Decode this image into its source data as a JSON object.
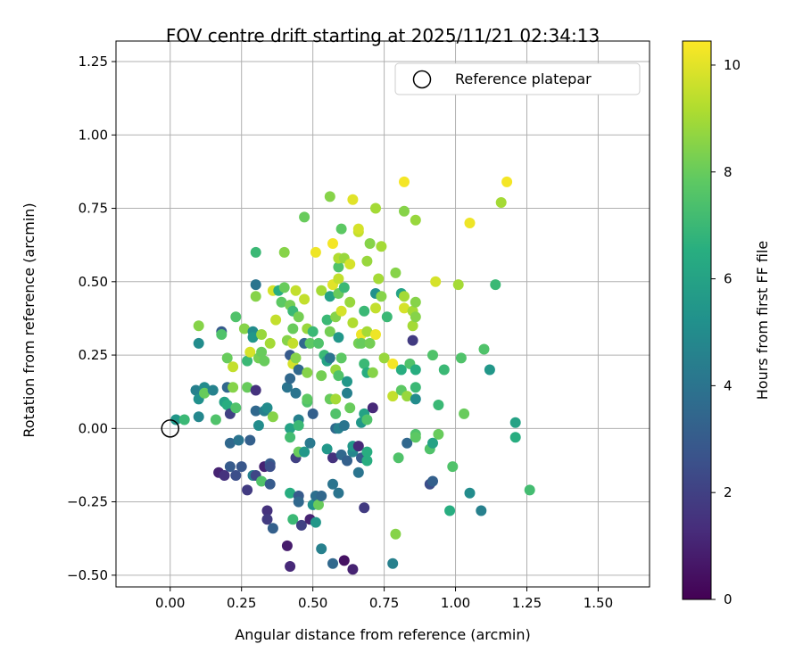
{
  "chart_data": {
    "type": "scatter",
    "title": "FOV centre drift starting at 2025/11/21 02:34:13",
    "xlabel": "Angular distance from reference (arcmin)",
    "ylabel": "Rotation from reference (arcmin)",
    "xlim": [
      -0.19,
      1.68
    ],
    "ylim": [
      -0.54,
      1.32
    ],
    "xticks": [
      "0.00",
      "0.25",
      "0.50",
      "0.75",
      "1.00",
      "1.25",
      "1.50"
    ],
    "yticks": [
      "−0.50",
      "−0.25",
      "0.00",
      "0.25",
      "0.50",
      "0.75",
      "1.00",
      "1.25"
    ],
    "grid": true,
    "legend": {
      "placement": "top-right",
      "entries": [
        "Reference platepar"
      ]
    },
    "reference_point": {
      "x": 0.0,
      "y": 0.0
    },
    "colorbar": {
      "label": "Hours from first FF file",
      "range": [
        0,
        10.45
      ],
      "ticks": [
        "0",
        "2",
        "4",
        "6",
        "8",
        "10"
      ],
      "colormap": "viridis"
    },
    "points": [
      [
        0.02,
        0.03,
        5.5
      ],
      [
        0.05,
        0.03,
        7.0
      ],
      [
        0.09,
        0.13,
        4.5
      ],
      [
        0.1,
        0.1,
        5.2
      ],
      [
        0.1,
        0.29,
        5.0
      ],
      [
        0.1,
        0.35,
        8.5
      ],
      [
        0.1,
        0.04,
        4.8
      ],
      [
        0.12,
        0.14,
        5.0
      ],
      [
        0.12,
        0.12,
        8.0
      ],
      [
        0.15,
        0.13,
        4.6
      ],
      [
        0.16,
        0.03,
        7.5
      ],
      [
        0.17,
        -0.15,
        1.0
      ],
      [
        0.18,
        0.33,
        3.0
      ],
      [
        0.18,
        0.32,
        7.5
      ],
      [
        0.19,
        -0.16,
        1.5
      ],
      [
        0.19,
        0.09,
        6.0
      ],
      [
        0.2,
        0.14,
        3.5
      ],
      [
        0.2,
        0.24,
        8.0
      ],
      [
        0.2,
        0.08,
        6.5
      ],
      [
        0.21,
        -0.13,
        3.0
      ],
      [
        0.21,
        -0.05,
        3.5
      ],
      [
        0.21,
        0.05,
        2.0
      ],
      [
        0.22,
        0.21,
        9.5
      ],
      [
        0.22,
        0.14,
        8.5
      ],
      [
        0.23,
        -0.16,
        2.5
      ],
      [
        0.23,
        0.38,
        7.5
      ],
      [
        0.23,
        0.07,
        7.5
      ],
      [
        0.24,
        -0.04,
        4.0
      ],
      [
        0.25,
        -0.13,
        2.8
      ],
      [
        0.26,
        0.34,
        8.5
      ],
      [
        0.27,
        0.14,
        8.0
      ],
      [
        0.27,
        0.23,
        7.0
      ],
      [
        0.27,
        -0.21,
        1.8
      ],
      [
        0.28,
        0.26,
        9.8
      ],
      [
        0.28,
        -0.04,
        3.2
      ],
      [
        0.29,
        -0.16,
        4.5
      ],
      [
        0.29,
        0.33,
        5.0
      ],
      [
        0.29,
        0.31,
        5.5
      ],
      [
        0.3,
        0.6,
        7.0
      ],
      [
        0.3,
        0.45,
        8.5
      ],
      [
        0.3,
        0.49,
        4.0
      ],
      [
        0.3,
        0.06,
        3.5
      ],
      [
        0.3,
        0.13,
        1.5
      ],
      [
        0.3,
        -0.16,
        2.2
      ],
      [
        0.31,
        0.24,
        8.2
      ],
      [
        0.31,
        0.01,
        5.0
      ],
      [
        0.32,
        0.32,
        8.8
      ],
      [
        0.32,
        0.26,
        8.0
      ],
      [
        0.32,
        -0.18,
        7.5
      ],
      [
        0.33,
        -0.13,
        1.0
      ],
      [
        0.33,
        0.06,
        4.5
      ],
      [
        0.33,
        0.23,
        8.0
      ],
      [
        0.34,
        -0.28,
        1.5
      ],
      [
        0.34,
        -0.31,
        1.8
      ],
      [
        0.34,
        0.07,
        5.0
      ],
      [
        0.35,
        -0.12,
        3.0
      ],
      [
        0.35,
        -0.13,
        2.5
      ],
      [
        0.35,
        -0.19,
        3.0
      ],
      [
        0.35,
        0.29,
        9.0
      ],
      [
        0.36,
        0.47,
        9.8
      ],
      [
        0.36,
        0.04,
        8.5
      ],
      [
        0.36,
        -0.34,
        3.2
      ],
      [
        0.37,
        0.37,
        9.5
      ],
      [
        0.38,
        0.47,
        6.5
      ],
      [
        0.39,
        0.43,
        7.8
      ],
      [
        0.4,
        0.6,
        8.5
      ],
      [
        0.4,
        0.48,
        8.0
      ],
      [
        0.41,
        -0.4,
        0.8
      ],
      [
        0.41,
        0.14,
        4.0
      ],
      [
        0.41,
        0.3,
        8.5
      ],
      [
        0.42,
        -0.47,
        1.2
      ],
      [
        0.42,
        0.42,
        8.2
      ],
      [
        0.42,
        0.17,
        3.5
      ],
      [
        0.42,
        0.0,
        6.0
      ],
      [
        0.42,
        0.25,
        3.0
      ],
      [
        0.42,
        -0.22,
        6.5
      ],
      [
        0.42,
        -0.03,
        7.2
      ],
      [
        0.43,
        0.22,
        9.8
      ],
      [
        0.43,
        0.34,
        8.0
      ],
      [
        0.43,
        0.29,
        9.5
      ],
      [
        0.43,
        -0.31,
        7.0
      ],
      [
        0.43,
        0.4,
        7.0
      ],
      [
        0.44,
        0.24,
        8.5
      ],
      [
        0.44,
        0.47,
        9.5
      ],
      [
        0.44,
        0.12,
        4.0
      ],
      [
        0.44,
        -0.1,
        2.0
      ],
      [
        0.45,
        -0.08,
        8.0
      ],
      [
        0.45,
        0.03,
        4.5
      ],
      [
        0.45,
        0.01,
        7.0
      ],
      [
        0.45,
        -0.23,
        3.0
      ],
      [
        0.45,
        -0.25,
        3.5
      ],
      [
        0.45,
        0.38,
        8.2
      ],
      [
        0.45,
        0.2,
        3.5
      ],
      [
        0.46,
        -0.33,
        2.0
      ],
      [
        0.47,
        0.44,
        9.5
      ],
      [
        0.47,
        -0.08,
        5.5
      ],
      [
        0.47,
        0.29,
        3.5
      ],
      [
        0.47,
        0.72,
        8.0
      ],
      [
        0.48,
        0.09,
        7.5
      ],
      [
        0.48,
        0.1,
        7.8
      ],
      [
        0.48,
        0.34,
        8.8
      ],
      [
        0.48,
        0.19,
        8.5
      ],
      [
        0.49,
        -0.05,
        4.2
      ],
      [
        0.49,
        -0.31,
        1.0
      ],
      [
        0.49,
        0.29,
        7.8
      ],
      [
        0.5,
        0.05,
        3.2
      ],
      [
        0.5,
        0.33,
        7.0
      ],
      [
        0.5,
        -0.26,
        5.2
      ],
      [
        0.51,
        -0.32,
        5.5
      ],
      [
        0.51,
        0.6,
        10.2
      ],
      [
        0.51,
        -0.23,
        3.8
      ],
      [
        0.52,
        0.29,
        7.5
      ],
      [
        0.52,
        -0.26,
        8.0
      ],
      [
        0.53,
        0.18,
        8.2
      ],
      [
        0.53,
        -0.23,
        3.5
      ],
      [
        0.53,
        -0.41,
        4.5
      ],
      [
        0.53,
        0.47,
        9.0
      ],
      [
        0.54,
        0.25,
        7.0
      ],
      [
        0.55,
        0.23,
        5.2
      ],
      [
        0.55,
        0.23,
        6.0
      ],
      [
        0.55,
        0.37,
        7.0
      ],
      [
        0.55,
        -0.07,
        5.5
      ],
      [
        0.56,
        0.1,
        8.0
      ],
      [
        0.56,
        0.45,
        6.0
      ],
      [
        0.56,
        0.24,
        4.0
      ],
      [
        0.56,
        0.79,
        8.5
      ],
      [
        0.56,
        0.33,
        8.2
      ],
      [
        0.57,
        -0.19,
        4.0
      ],
      [
        0.57,
        -0.1,
        1.5
      ],
      [
        0.57,
        -0.46,
        3.5
      ],
      [
        0.57,
        0.49,
        10.0
      ],
      [
        0.57,
        0.63,
        10.3
      ],
      [
        0.58,
        0.1,
        9.0
      ],
      [
        0.58,
        0.05,
        7.5
      ],
      [
        0.58,
        0.2,
        8.8
      ],
      [
        0.58,
        0.0,
        3.5
      ],
      [
        0.58,
        0.38,
        8.5
      ],
      [
        0.59,
        0.46,
        8.0
      ],
      [
        0.59,
        0.31,
        5.5
      ],
      [
        0.59,
        0.18,
        7.5
      ],
      [
        0.59,
        0.51,
        9.5
      ],
      [
        0.59,
        0.0,
        4.5
      ],
      [
        0.59,
        0.55,
        7.5
      ],
      [
        0.59,
        -0.22,
        4.0
      ],
      [
        0.59,
        0.58,
        9.2
      ],
      [
        0.6,
        -0.09,
        3.5
      ],
      [
        0.6,
        0.4,
        9.8
      ],
      [
        0.6,
        0.24,
        7.8
      ],
      [
        0.6,
        0.68,
        7.8
      ],
      [
        0.61,
        0.01,
        4.0
      ],
      [
        0.61,
        0.58,
        8.8
      ],
      [
        0.61,
        0.48,
        7.0
      ],
      [
        0.61,
        -0.45,
        0.5
      ],
      [
        0.62,
        0.16,
        5.5
      ],
      [
        0.62,
        0.12,
        4.5
      ],
      [
        0.62,
        -0.11,
        3.2
      ],
      [
        0.63,
        0.56,
        9.8
      ],
      [
        0.63,
        0.07,
        8.0
      ],
      [
        0.63,
        0.43,
        8.8
      ],
      [
        0.64,
        -0.48,
        1.0
      ],
      [
        0.64,
        -0.08,
        4.8
      ],
      [
        0.64,
        0.78,
        10.0
      ],
      [
        0.64,
        -0.06,
        5.5
      ],
      [
        0.64,
        0.36,
        9.2
      ],
      [
        0.66,
        0.67,
        9.5
      ],
      [
        0.66,
        0.29,
        8.2
      ],
      [
        0.66,
        -0.06,
        1.2
      ],
      [
        0.66,
        -0.15,
        4.0
      ],
      [
        0.66,
        0.68,
        9.8
      ],
      [
        0.67,
        0.32,
        10.2
      ],
      [
        0.67,
        -0.1,
        3.0
      ],
      [
        0.67,
        0.02,
        5.5
      ],
      [
        0.67,
        0.29,
        8.0
      ],
      [
        0.68,
        -0.27,
        1.8
      ],
      [
        0.68,
        0.4,
        7.0
      ],
      [
        0.68,
        0.22,
        7.0
      ],
      [
        0.68,
        0.05,
        6.0
      ],
      [
        0.69,
        0.19,
        6.5
      ],
      [
        0.69,
        -0.08,
        6.5
      ],
      [
        0.69,
        0.57,
        8.8
      ],
      [
        0.69,
        0.33,
        9.0
      ],
      [
        0.69,
        -0.11,
        6.5
      ],
      [
        0.69,
        0.03,
        7.5
      ],
      [
        0.7,
        0.29,
        8.2
      ],
      [
        0.7,
        0.63,
        8.5
      ],
      [
        0.71,
        0.07,
        1.2
      ],
      [
        0.71,
        0.19,
        8.5
      ],
      [
        0.72,
        0.46,
        5.2
      ],
      [
        0.72,
        0.75,
        9.0
      ],
      [
        0.72,
        0.32,
        10.2
      ],
      [
        0.72,
        0.41,
        9.5
      ],
      [
        0.73,
        0.51,
        9.0
      ],
      [
        0.74,
        0.62,
        9.0
      ],
      [
        0.74,
        0.45,
        8.5
      ],
      [
        0.75,
        0.24,
        8.8
      ],
      [
        0.76,
        0.38,
        7.0
      ],
      [
        0.78,
        0.11,
        9.5
      ],
      [
        0.78,
        0.22,
        10.3
      ],
      [
        0.78,
        -0.46,
        4.5
      ],
      [
        0.79,
        0.53,
        8.5
      ],
      [
        0.79,
        -0.36,
        8.5
      ],
      [
        0.8,
        -0.1,
        7.5
      ],
      [
        0.81,
        0.2,
        6.5
      ],
      [
        0.81,
        0.13,
        7.8
      ],
      [
        0.81,
        0.46,
        6.0
      ],
      [
        0.82,
        0.84,
        10.3
      ],
      [
        0.82,
        0.74,
        8.5
      ],
      [
        0.82,
        0.45,
        9.0
      ],
      [
        0.82,
        0.41,
        9.8
      ],
      [
        0.83,
        0.11,
        8.8
      ],
      [
        0.83,
        -0.05,
        3.5
      ],
      [
        0.84,
        0.22,
        7.5
      ],
      [
        0.85,
        0.3,
        1.8
      ],
      [
        0.85,
        0.35,
        9.0
      ],
      [
        0.85,
        0.4,
        9.0
      ],
      [
        0.86,
        0.71,
        8.8
      ],
      [
        0.86,
        0.38,
        8.5
      ],
      [
        0.86,
        0.43,
        8.5
      ],
      [
        0.86,
        0.2,
        6.5
      ],
      [
        0.86,
        -0.02,
        7.5
      ],
      [
        0.86,
        0.14,
        7.0
      ],
      [
        0.86,
        0.1,
        5.0
      ],
      [
        0.86,
        -0.03,
        7.8
      ],
      [
        0.91,
        -0.19,
        2.5
      ],
      [
        0.91,
        -0.07,
        7.5
      ],
      [
        0.92,
        -0.18,
        3.2
      ],
      [
        0.92,
        -0.05,
        6.0
      ],
      [
        0.92,
        0.25,
        7.5
      ],
      [
        0.93,
        0.5,
        9.8
      ],
      [
        0.94,
        0.08,
        7.0
      ],
      [
        0.94,
        -0.02,
        8.0
      ],
      [
        0.96,
        0.2,
        7.0
      ],
      [
        0.98,
        -0.28,
        6.5
      ],
      [
        0.99,
        -0.13,
        7.5
      ],
      [
        1.01,
        0.49,
        9.0
      ],
      [
        1.02,
        0.24,
        7.5
      ],
      [
        1.03,
        0.05,
        8.0
      ],
      [
        1.05,
        -0.22,
        5.0
      ],
      [
        1.05,
        0.7,
        10.2
      ],
      [
        1.09,
        -0.28,
        4.5
      ],
      [
        1.1,
        0.27,
        7.5
      ],
      [
        1.12,
        0.2,
        5.5
      ],
      [
        1.14,
        0.49,
        7.0
      ],
      [
        1.16,
        0.77,
        9.0
      ],
      [
        1.18,
        0.84,
        10.3
      ],
      [
        1.21,
        0.02,
        6.0
      ],
      [
        1.21,
        -0.03,
        6.5
      ],
      [
        1.26,
        -0.21,
        7.2
      ]
    ]
  }
}
